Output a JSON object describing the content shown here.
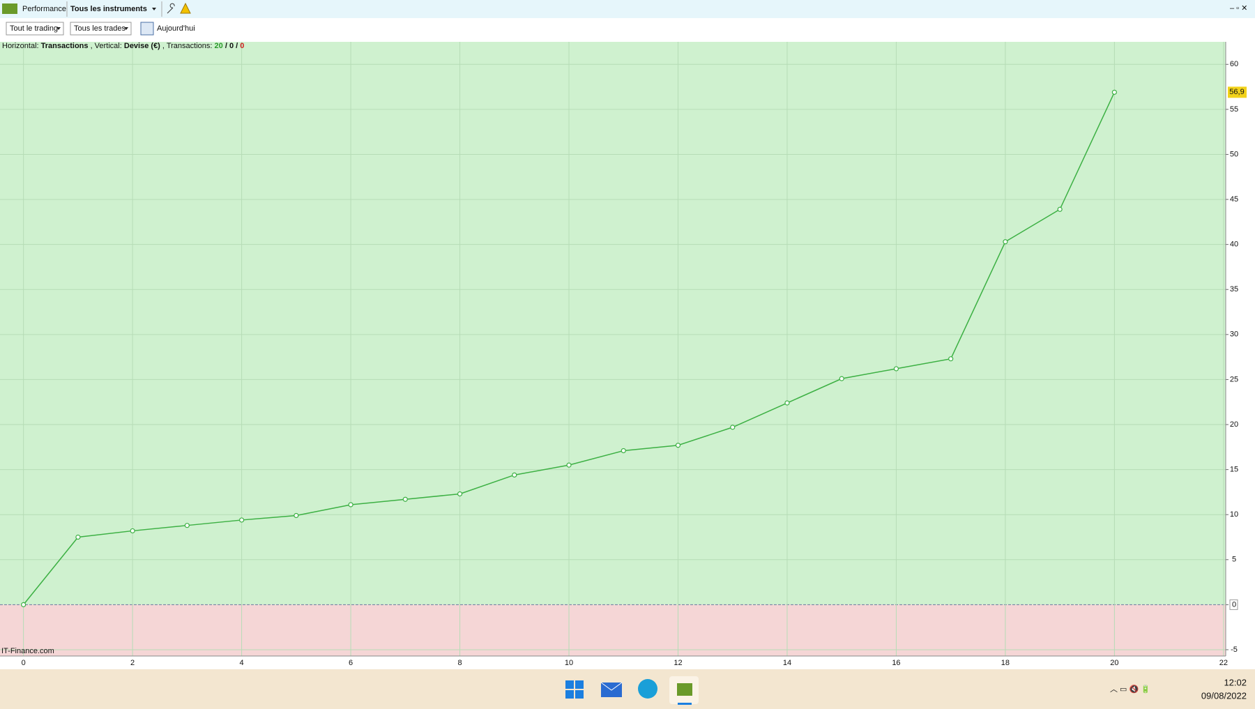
{
  "window": {
    "tab": "Performance",
    "instruments": "Tous les instruments"
  },
  "toolbar": {
    "period": "Tout le trading",
    "trades": "Tous les trades",
    "date": "Aujourd'hui"
  },
  "chart_data": {
    "type": "line",
    "info": {
      "h_label": "Horizontal:",
      "h_value": "Transactions",
      "v_label": ", Vertical:",
      "v_value": "Devise (€)",
      "t_label": ", Transactions:",
      "wins": 20,
      "flat": 0,
      "losses": 0,
      "separator": "/"
    },
    "x": [
      0,
      1,
      2,
      3,
      4,
      5,
      6,
      7,
      8,
      9,
      10,
      11,
      12,
      13,
      14,
      15,
      16,
      17,
      18,
      19,
      20
    ],
    "values": [
      0,
      7.5,
      8.2,
      8.8,
      9.4,
      9.9,
      11.1,
      11.7,
      12.3,
      14.4,
      15.5,
      17.1,
      17.7,
      19.7,
      22.4,
      25.1,
      26.2,
      27.3,
      40.3,
      43.9,
      56.9
    ],
    "value_labels": [
      null,
      null,
      null,
      null,
      null,
      null,
      null,
      null,
      null,
      null,
      null,
      null,
      null,
      null,
      null,
      null,
      null,
      null,
      null,
      null,
      "56,9"
    ],
    "color": "#3cb043",
    "xlim": [
      -0.43,
      22.04
    ],
    "ylim": [
      -5.7,
      62.5
    ],
    "xticks": [
      0,
      2,
      4,
      6,
      8,
      10,
      12,
      14,
      16,
      18,
      20,
      22
    ],
    "yticks": [
      -5,
      0,
      5,
      10,
      15,
      20,
      25,
      30,
      35,
      40,
      45,
      50,
      55,
      60
    ],
    "grid": true,
    "watermark": "IT-Finance.com"
  },
  "taskbar": {
    "time": "12:02",
    "date": "09/08/2022"
  }
}
